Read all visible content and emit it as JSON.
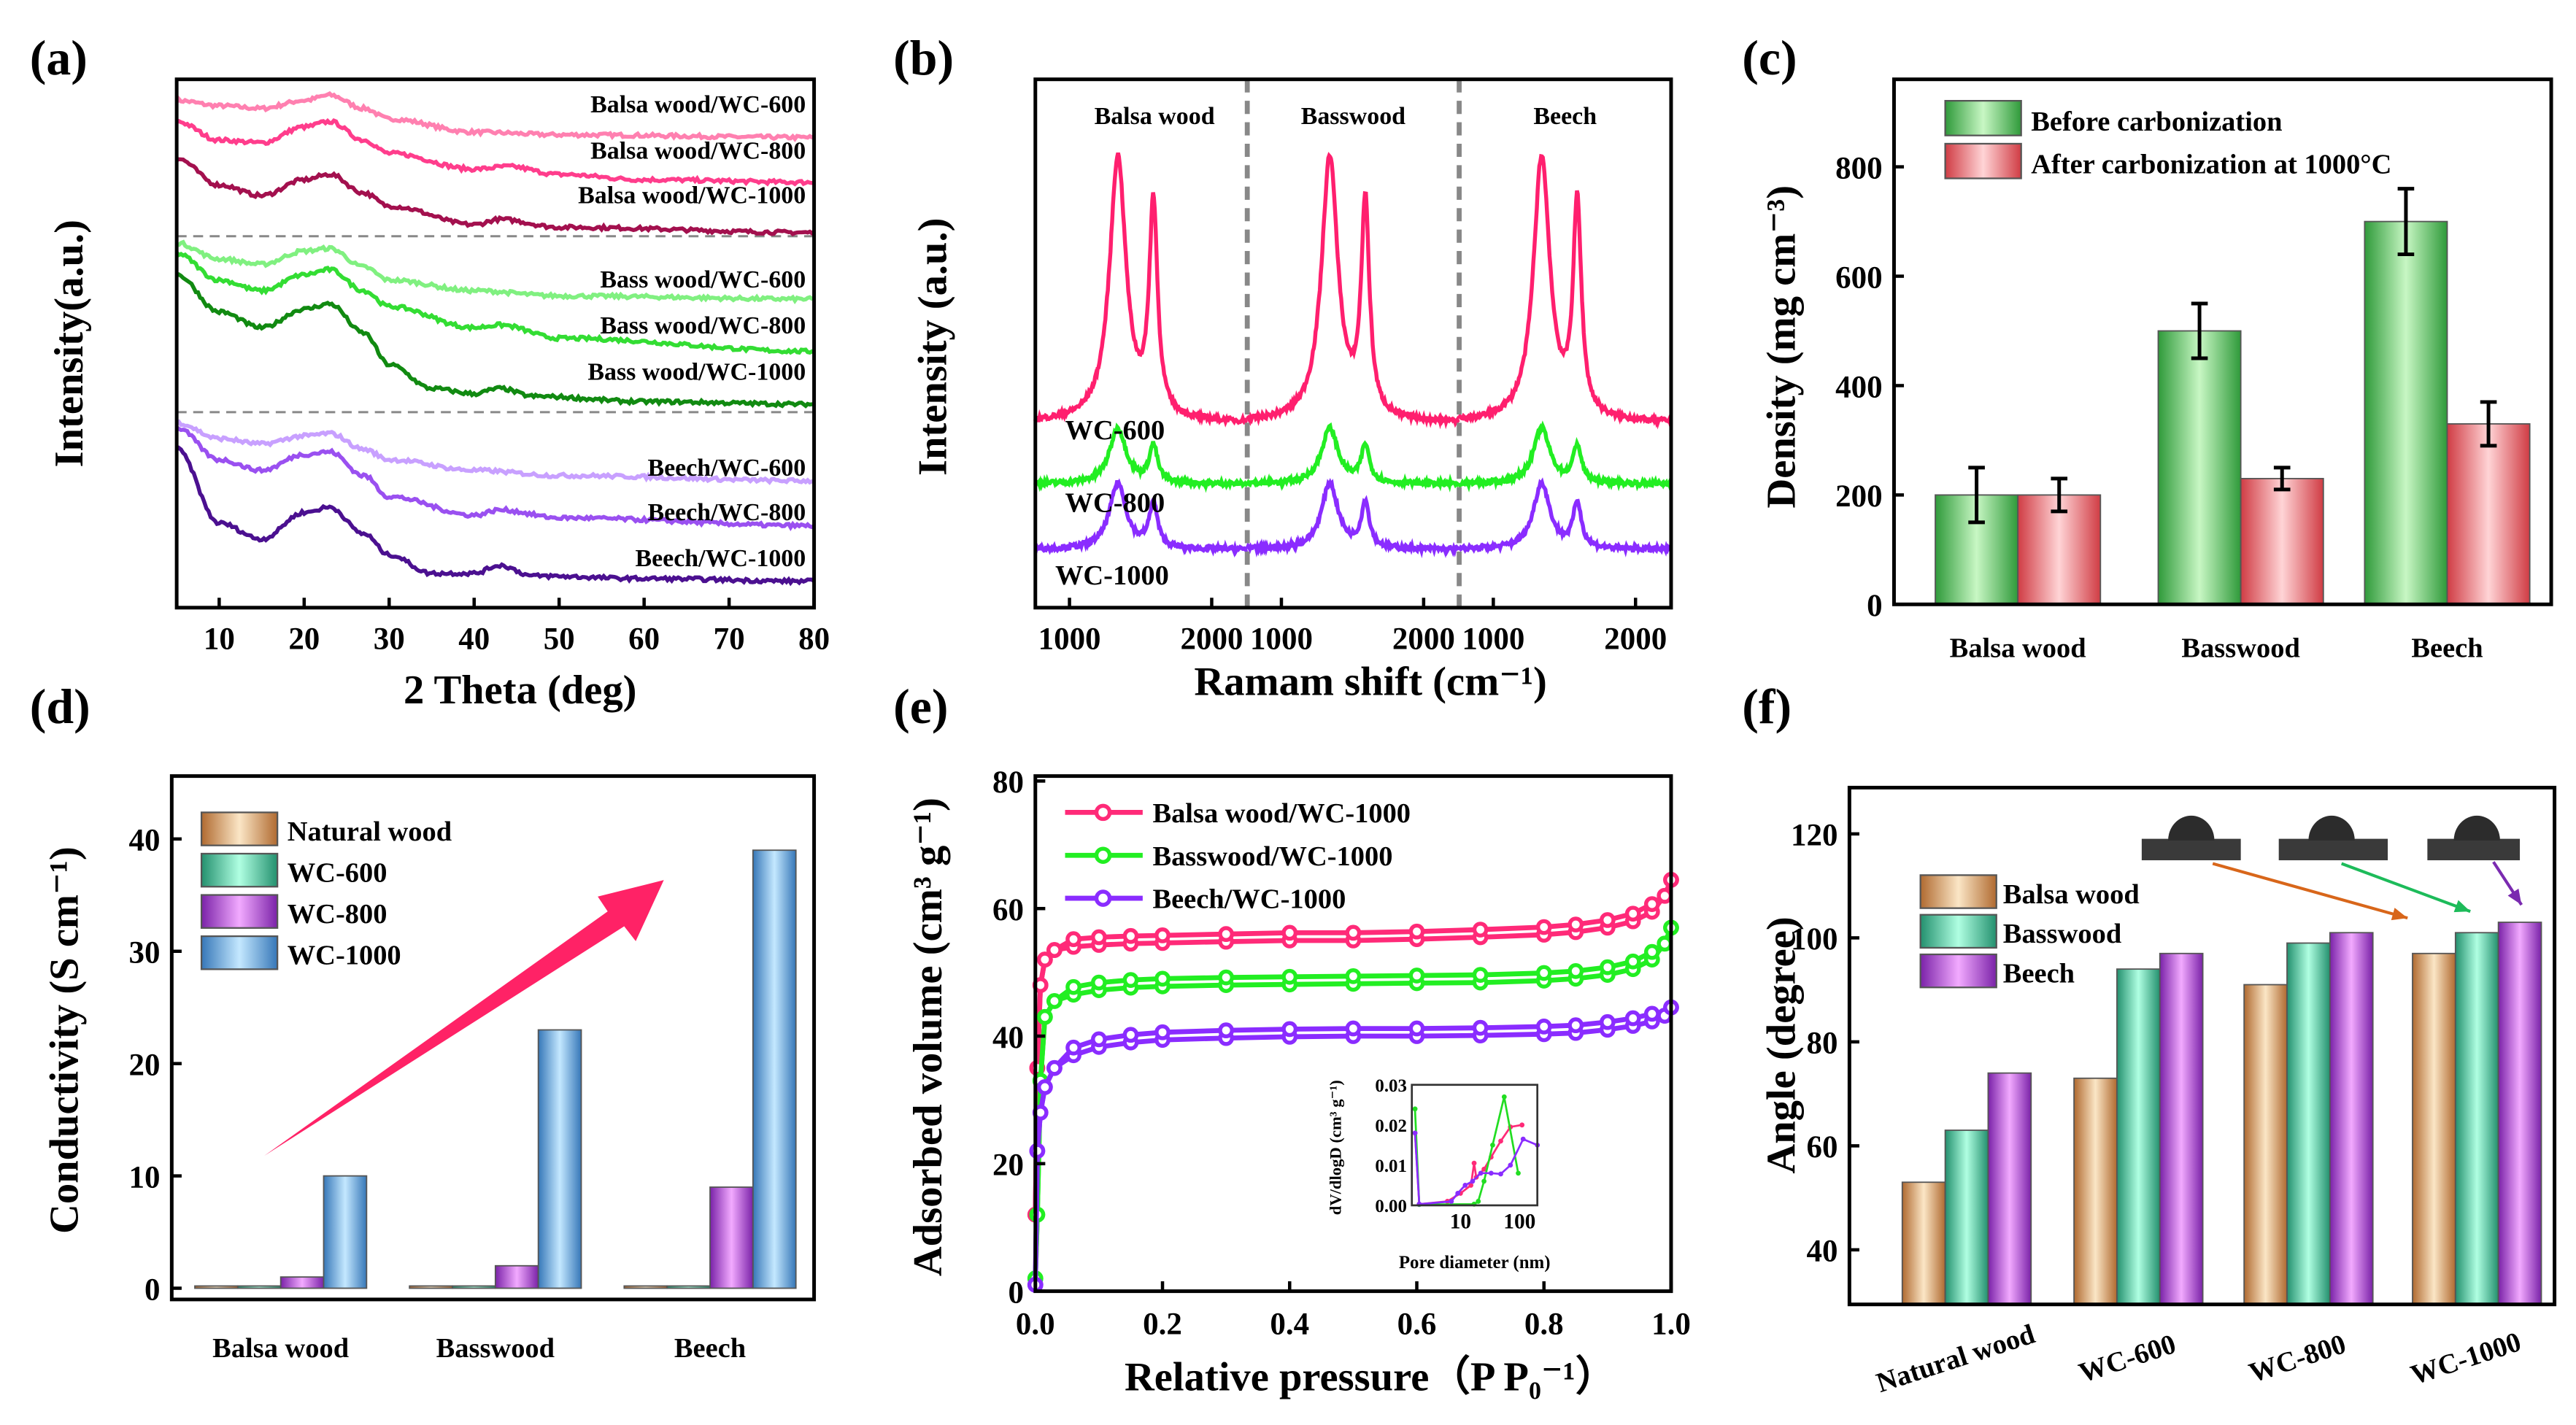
{
  "panels": {
    "a": "(a)",
    "b": "(b)",
    "c": "(c)",
    "d": "(d)",
    "e": "(e)",
    "f": "(f)"
  },
  "chart_data": [
    {
      "id": "a",
      "type": "line",
      "xlabel": "2 Theta (deg)",
      "ylabel": "Intensity(a.u.)",
      "xlim": [
        5,
        80
      ],
      "xticks": [
        10,
        20,
        30,
        40,
        50,
        60,
        70,
        80
      ],
      "ylim": [
        0,
        100
      ],
      "dividers": [
        70.3,
        37
      ],
      "series": [
        {
          "name": "Balsa wood/WC-600",
          "color": "#ff80b0",
          "points": [
            [
              5,
              96
            ],
            [
              10,
              95
            ],
            [
              15,
              94.5
            ],
            [
              20,
              96
            ],
            [
              23,
              97
            ],
            [
              27,
              94.5
            ],
            [
              30,
              92.5
            ],
            [
              40,
              90
            ],
            [
              50,
              89.5
            ],
            [
              80,
              89
            ]
          ]
        },
        {
          "name": "Balsa wood/WC-800",
          "color": "#ff3d8c",
          "points": [
            [
              5,
              92
            ],
            [
              10,
              88.5
            ],
            [
              15,
              88
            ],
            [
              20,
              91
            ],
            [
              23,
              92
            ],
            [
              27,
              88.5
            ],
            [
              30,
              86
            ],
            [
              40,
              83
            ],
            [
              44,
              83.5
            ],
            [
              50,
              82
            ],
            [
              60,
              81
            ],
            [
              80,
              80.5
            ]
          ]
        },
        {
          "name": "Balsa wood/WC-1000",
          "color": "#a3104e",
          "points": [
            [
              5,
              85
            ],
            [
              10,
              80
            ],
            [
              15,
              78
            ],
            [
              20,
              81
            ],
            [
              23,
              82
            ],
            [
              27,
              78.5
            ],
            [
              30,
              76
            ],
            [
              40,
              72.5
            ],
            [
              43,
              73.5
            ],
            [
              50,
              72
            ],
            [
              80,
              71
            ]
          ]
        },
        {
          "name": "Bass wood/WC-600",
          "color": "#80f080",
          "points": [
            [
              5,
              69
            ],
            [
              10,
              66
            ],
            [
              15,
              65
            ],
            [
              20,
              67.5
            ],
            [
              23,
              68
            ],
            [
              27,
              64.5
            ],
            [
              30,
              62
            ],
            [
              40,
              60
            ],
            [
              50,
              59
            ],
            [
              80,
              58.4
            ]
          ]
        },
        {
          "name": "Bass wood/WC-800",
          "color": "#33dd33",
          "points": [
            [
              5,
              67
            ],
            [
              10,
              62
            ],
            [
              15,
              60
            ],
            [
              20,
              63
            ],
            [
              23,
              64
            ],
            [
              27,
              60
            ],
            [
              30,
              57
            ],
            [
              40,
              53
            ],
            [
              43,
              53.5
            ],
            [
              50,
              51
            ],
            [
              80,
              48.5
            ]
          ]
        },
        {
          "name": "Bass wood/WC-1000",
          "color": "#118a11",
          "points": [
            [
              5,
              63
            ],
            [
              10,
              56
            ],
            [
              15,
              53
            ],
            [
              20,
              56.5
            ],
            [
              23,
              57.5
            ],
            [
              27,
              52
            ],
            [
              30,
              46
            ],
            [
              35,
              41.5
            ],
            [
              40,
              40.5
            ],
            [
              43,
              41.5
            ],
            [
              47,
              40
            ],
            [
              60,
              39
            ],
            [
              80,
              38.5
            ]
          ]
        },
        {
          "name": "Beech/WC-600",
          "color": "#c8a0ff",
          "points": [
            [
              5,
              35
            ],
            [
              10,
              32
            ],
            [
              15,
              31
            ],
            [
              20,
              32.5
            ],
            [
              23,
              33
            ],
            [
              27,
              30
            ],
            [
              30,
              28
            ],
            [
              40,
              26
            ],
            [
              50,
              25
            ],
            [
              80,
              24
            ]
          ]
        },
        {
          "name": "Beech/WC-800",
          "color": "#9a50f0",
          "points": [
            [
              5,
              34
            ],
            [
              10,
              28
            ],
            [
              15,
              26
            ],
            [
              20,
              29
            ],
            [
              23,
              29.5
            ],
            [
              27,
              25
            ],
            [
              30,
              21
            ],
            [
              40,
              17.5
            ],
            [
              43,
              18.5
            ],
            [
              50,
              17
            ],
            [
              80,
              15.5
            ]
          ]
        },
        {
          "name": "Beech/WC-1000",
          "color": "#4b1090",
          "points": [
            [
              5,
              30
            ],
            [
              10,
              16
            ],
            [
              15,
              13
            ],
            [
              20,
              18
            ],
            [
              23,
              19
            ],
            [
              27,
              14
            ],
            [
              30,
              10
            ],
            [
              35,
              6.5
            ],
            [
              40,
              6.5
            ],
            [
              43,
              8
            ],
            [
              47,
              6
            ],
            [
              60,
              5.5
            ],
            [
              80,
              5
            ]
          ]
        }
      ]
    },
    {
      "id": "b",
      "type": "line",
      "xlabel": "Ramam shift (cm⁻¹)",
      "ylabel": "Intensity (a.u.)",
      "sections": [
        "Balsa wood",
        "Basswood",
        "Beech"
      ],
      "xlim": [
        760,
        2250
      ],
      "xticks": [
        1000,
        2000
      ],
      "ylim": [
        0,
        100
      ],
      "D_band": 1340,
      "G_band": 1590,
      "series": [
        {
          "name": "WC-600",
          "color": "#ff1f6e",
          "baseline": 35,
          "D_height": 50,
          "G_height": 40
        },
        {
          "name": "WC-800",
          "color": "#22ee22",
          "baseline": 23.4,
          "D_height": 10.5,
          "G_height": 7
        },
        {
          "name": "WC-1000",
          "color": "#8a2cff",
          "baseline": 11,
          "D_height": 12.5,
          "G_height": 8.5
        }
      ]
    },
    {
      "id": "c",
      "type": "bar",
      "ylabel": "Density (mg cm⁻³)",
      "ylim": [
        0,
        960
      ],
      "yticks": [
        0,
        200,
        400,
        600,
        800
      ],
      "categories": [
        "Balsa wood",
        "Basswood",
        "Beech"
      ],
      "series": [
        {
          "name": "Before carbonization",
          "values": [
            200,
            500,
            700
          ],
          "errors": [
            50,
            50,
            60
          ]
        },
        {
          "name": "After carbonization at 1000°C",
          "values": [
            200,
            230,
            330
          ],
          "errors": [
            30,
            20,
            40
          ]
        }
      ]
    },
    {
      "id": "d",
      "type": "bar",
      "ylabel": "Conductivity (S cm⁻¹)",
      "ylim": [
        -1,
        45.6
      ],
      "yticks": [
        0,
        10,
        20,
        30,
        40
      ],
      "categories": [
        "Balsa wood",
        "Basswood",
        "Beech"
      ],
      "series": [
        {
          "name": "Natural wood",
          "values": [
            0.2,
            0.2,
            0.2
          ]
        },
        {
          "name": "WC-600",
          "values": [
            0.2,
            0.2,
            0.2
          ]
        },
        {
          "name": "WC-800",
          "values": [
            1,
            2,
            9
          ]
        },
        {
          "name": "WC-1000",
          "values": [
            10,
            23,
            39
          ]
        }
      ]
    },
    {
      "id": "e",
      "type": "scatter",
      "xlabel": "Relative pressure（P P₀⁻¹）",
      "ylabel": "Adsorbed volume (cm³ g⁻¹)",
      "xlim": [
        0,
        1
      ],
      "xticks": [
        "0.0",
        "0.2",
        "0.4",
        "0.6",
        "0.8",
        "1.0"
      ],
      "ylim": [
        0,
        80
      ],
      "yticks": [
        0,
        20,
        40,
        60,
        80
      ],
      "series": [
        {
          "name": "Balsa wood/WC-1000",
          "color": "#ff2a78",
          "P": [
            0,
            0.003,
            0.008,
            0.015,
            0.03,
            0.06,
            0.1,
            0.15,
            0.2,
            0.3,
            0.4,
            0.5,
            0.6,
            0.7,
            0.8,
            0.85,
            0.9,
            0.94,
            0.97,
            0.99,
            1.0
          ],
          "V": [
            12,
            35,
            48,
            52,
            53.5,
            54,
            54.3,
            54.5,
            54.6,
            54.8,
            55,
            55,
            55.2,
            55.5,
            55.9,
            56.3,
            57,
            58,
            59.5,
            62,
            64.5
          ]
        },
        {
          "name": "Basswood/WC-1000",
          "color": "#22ee22",
          "P": [
            0,
            0.003,
            0.008,
            0.015,
            0.03,
            0.06,
            0.1,
            0.15,
            0.2,
            0.3,
            0.4,
            0.5,
            0.6,
            0.7,
            0.8,
            0.85,
            0.9,
            0.94,
            0.97,
            0.99,
            1.0
          ],
          "V": [
            2,
            12,
            33,
            43,
            45.5,
            46.5,
            47.2,
            47.6,
            47.8,
            48,
            48.1,
            48.2,
            48.3,
            48.4,
            48.7,
            49,
            49.6,
            50.5,
            52,
            54.5,
            57
          ]
        },
        {
          "name": "Beech/WC-1000",
          "color": "#8a2cff",
          "P": [
            0,
            0.003,
            0.008,
            0.015,
            0.03,
            0.06,
            0.1,
            0.15,
            0.2,
            0.3,
            0.4,
            0.5,
            0.6,
            0.7,
            0.8,
            0.85,
            0.9,
            0.94,
            0.97,
            0.99,
            1.0
          ],
          "V": [
            1,
            22,
            28,
            32,
            35,
            37,
            38.3,
            39,
            39.4,
            39.7,
            39.9,
            40,
            40,
            40.1,
            40.3,
            40.5,
            41,
            41.6,
            42.3,
            43.2,
            44.5
          ]
        }
      ],
      "inset": {
        "xlabel": "Pore diameter (nm)",
        "ylabel": "dV/dlogD (cm³ g⁻¹)",
        "xlim": [
          1.5,
          200
        ],
        "xscale": "log",
        "xticks": [
          10,
          100
        ],
        "ylim": [
          0,
          0.03
        ],
        "yticks": [
          "0.00",
          "0.01",
          "0.02",
          "0.03"
        ],
        "series": [
          {
            "name": "Balsa wood/WC-1000",
            "color": "#ff2a78",
            "points": [
              [
                1.7,
                0.018
              ],
              [
                2,
                0.0003
              ],
              [
                6,
                0.001
              ],
              [
                10,
                0.003
              ],
              [
                15,
                0.005
              ],
              [
                17,
                0.0105
              ],
              [
                18.5,
                0.007
              ],
              [
                25,
                0.009
              ],
              [
                33,
                0.012
              ],
              [
                48,
                0.016
              ],
              [
                70,
                0.0195
              ],
              [
                110,
                0.02
              ]
            ]
          },
          {
            "name": "Basswood/WC-1000",
            "color": "#22dd22",
            "points": [
              [
                1.7,
                0.024
              ],
              [
                2,
                0.0002
              ],
              [
                17,
                0.0003
              ],
              [
                20,
                0.001
              ],
              [
                25,
                0.006
              ],
              [
                35,
                0.015
              ],
              [
                55,
                0.027
              ],
              [
                95,
                0.008
              ]
            ]
          },
          {
            "name": "Beech/WC-1000",
            "color": "#8a2cff",
            "points": [
              [
                1.7,
                0.018
              ],
              [
                2,
                0.0003
              ],
              [
                7,
                0.001
              ],
              [
                9,
                0.003
              ],
              [
                12,
                0.005
              ],
              [
                16,
                0.006
              ],
              [
                22,
                0.008
              ],
              [
                33,
                0.008
              ],
              [
                48,
                0.0078
              ],
              [
                70,
                0.01
              ],
              [
                115,
                0.0165
              ],
              [
                200,
                0.015
              ]
            ]
          }
        ]
      }
    },
    {
      "id": "f",
      "type": "bar",
      "ylabel": "Angle (degree)",
      "ylim": [
        29.5,
        128.9
      ],
      "yticks": [
        40,
        60,
        80,
        100,
        120
      ],
      "categories": [
        "Natural wood",
        "WC-600",
        "WC-800",
        "WC-1000"
      ],
      "series": [
        {
          "name": "Balsa wood",
          "values": [
            53,
            73,
            91,
            97
          ],
          "arrow_color": "#d8661a"
        },
        {
          "name": "Basswood",
          "values": [
            63,
            94,
            99,
            101
          ],
          "arrow_color": "#1dbb5a"
        },
        {
          "name": "Beech",
          "values": [
            74,
            97,
            101,
            103
          ],
          "arrow_color": "#7a2ab0"
        }
      ]
    }
  ]
}
